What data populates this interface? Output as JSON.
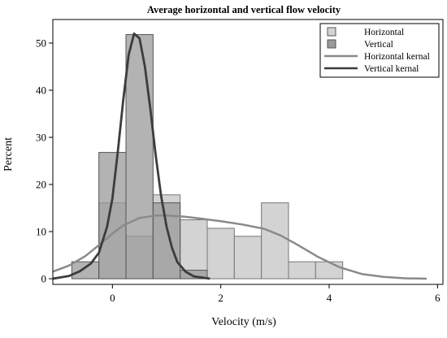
{
  "chart_data": {
    "type": "bar",
    "title": "Average horizontal and vertical flow velocity",
    "xlabel": "Velocity (m/s)",
    "ylabel": "Percent",
    "xlim": [
      -1.1,
      6.1
    ],
    "ylim": [
      -1.2,
      55
    ],
    "x_ticks": [
      0,
      2,
      4,
      6
    ],
    "y_ticks": [
      0,
      10,
      20,
      30,
      40,
      50
    ],
    "grid": false,
    "legend_position": "top-right",
    "bin_width": 0.5,
    "series": [
      {
        "name": "Horizontal",
        "kind": "histogram",
        "color": "#d3d3d3",
        "bin_starts": [
          -0.25,
          0.25,
          0.75,
          1.25,
          1.75,
          2.25,
          2.75,
          3.25,
          3.75
        ],
        "values": [
          16.1,
          9.0,
          17.8,
          12.5,
          10.7,
          9.0,
          16.1,
          3.6,
          3.6
        ]
      },
      {
        "name": "Vertical",
        "kind": "histogram",
        "color": "#9a9a9a",
        "bin_starts": [
          -0.75,
          -0.25,
          0.25,
          0.75,
          1.25
        ],
        "values": [
          3.6,
          26.8,
          51.8,
          16.1,
          1.8
        ]
      },
      {
        "name": "Horizontal kernal",
        "kind": "kernel",
        "color": "#8a8a8a",
        "x": [
          -1.1,
          -0.8,
          -0.5,
          -0.2,
          0.0,
          0.2,
          0.5,
          0.8,
          1.0,
          1.3,
          1.6,
          2.0,
          2.4,
          2.8,
          3.1,
          3.4,
          3.8,
          4.2,
          4.6,
          5.0,
          5.4,
          5.8
        ],
        "y": [
          1.5,
          2.8,
          4.8,
          7.6,
          9.6,
          11.3,
          12.9,
          13.4,
          13.4,
          13.2,
          12.8,
          12.2,
          11.5,
          10.6,
          9.2,
          7.3,
          4.6,
          2.4,
          1.0,
          0.4,
          0.1,
          0.0
        ]
      },
      {
        "name": "Vertical kernal",
        "kind": "kernel",
        "color": "#3c3c3c",
        "x": [
          -1.1,
          -0.8,
          -0.6,
          -0.4,
          -0.25,
          -0.1,
          0.0,
          0.1,
          0.2,
          0.3,
          0.4,
          0.5,
          0.6,
          0.7,
          0.8,
          0.9,
          1.0,
          1.1,
          1.2,
          1.35,
          1.5,
          1.8
        ],
        "y": [
          0.0,
          0.6,
          1.6,
          3.2,
          5.5,
          11.0,
          17.0,
          27.0,
          38.0,
          47.5,
          52.0,
          51.0,
          45.0,
          36.0,
          26.0,
          17.5,
          11.0,
          6.5,
          3.5,
          1.5,
          0.5,
          0.0
        ]
      }
    ]
  }
}
